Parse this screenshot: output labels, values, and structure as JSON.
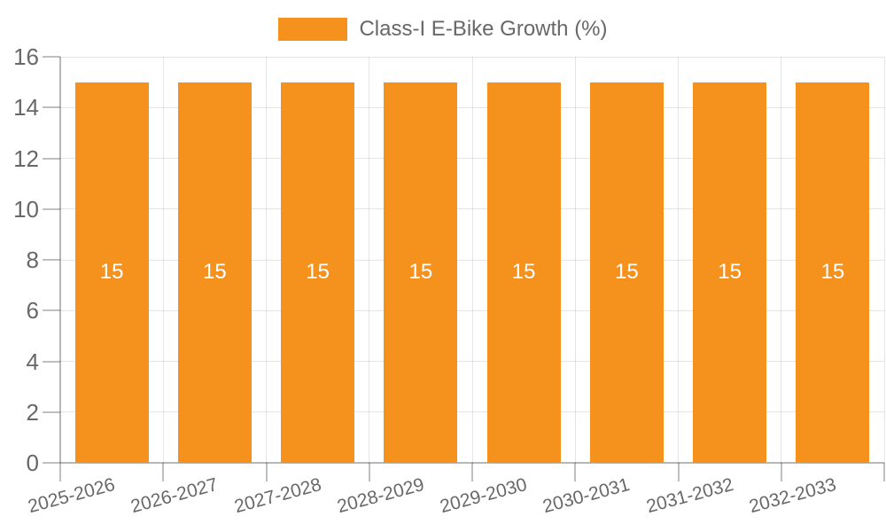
{
  "legend": {
    "label": "Class-I E-Bike Growth (%)"
  },
  "chart_data": {
    "type": "bar",
    "title": "",
    "categories": [
      "2025-2026",
      "2026-2027",
      "2027-2028",
      "2028-2029",
      "2029-2030",
      "2030-2031",
      "2031-2032",
      "2032-2033"
    ],
    "series": [
      {
        "name": "Class-I E-Bike Growth (%)",
        "values": [
          15,
          15,
          15,
          15,
          15,
          15,
          15,
          15
        ]
      }
    ],
    "bar_value_labels": [
      "15",
      "15",
      "15",
      "15",
      "15",
      "15",
      "15",
      "15"
    ],
    "yticks": [
      0,
      2,
      4,
      6,
      8,
      10,
      12,
      14,
      16
    ],
    "ylim": [
      0,
      16
    ],
    "grid": true,
    "legend_position": "top",
    "xlabel": "",
    "ylabel": "",
    "colors": {
      "bar": "#F5921E",
      "tick_text": "#686868",
      "grid_line": "rgba(0,0,0,0.10)",
      "axis_line": "rgba(0,0,0,0.28)",
      "tick_mark": "rgba(0,0,0,0.25)",
      "bar_label_text": "#ffffff",
      "background": "#ffffff"
    }
  }
}
